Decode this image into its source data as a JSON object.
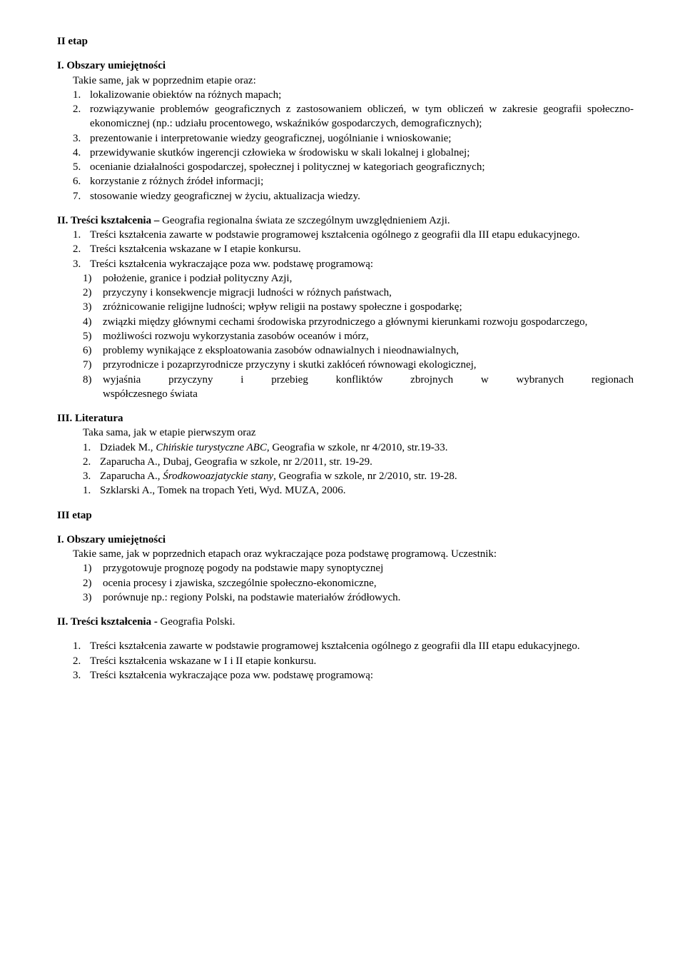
{
  "etap2": {
    "title": "II etap",
    "obszary_heading": "I. Obszary umiejętności",
    "obszary_intro": "Takie same, jak w poprzednim etapie oraz:",
    "obszary_items": [
      {
        "n": "1.",
        "t": "lokalizowanie obiektów na różnych mapach;"
      },
      {
        "n": "2.",
        "t": "rozwiązywanie problemów geograficznych z zastosowaniem obliczeń, w tym obliczeń w zakresie geografii społeczno-ekonomicznej (np.: udziału procentowego, wskaźników gospodarczych, demograficznych);",
        "just": true
      },
      {
        "n": "3.",
        "t": "prezentowanie i interpretowanie wiedzy geograficznej, uogólnianie i wnioskowanie;"
      },
      {
        "n": "4.",
        "t": "przewidywanie skutków ingerencji człowieka w środowisku w skali lokalnej i globalnej;"
      },
      {
        "n": "5.",
        "t": "ocenianie działalności gospodarczej, społecznej i politycznej w kategoriach geograficznych;"
      },
      {
        "n": "6.",
        "t": "korzystanie z różnych źródeł informacji;"
      },
      {
        "n": "7.",
        "t": "stosowanie wiedzy geograficznej w życiu, aktualizacja wiedzy."
      }
    ],
    "tresci_heading_bold": "II. Treści kształcenia – ",
    "tresci_heading_rest": "Geografia regionalna świata ze szczególnym uwzględnieniem Azji.",
    "tresci_items": [
      {
        "n": "1.",
        "t": "Treści kształcenia zawarte w podstawie programowej kształcenia ogólnego z geografii dla III etapu edukacyjnego.",
        "just": true
      },
      {
        "n": "2.",
        "t": "Treści kształcenia wskazane w I etapie konkursu."
      },
      {
        "n": "3.",
        "t": "Treści kształcenia wykraczające poza ww. podstawę programową:"
      }
    ],
    "tresci_sub": [
      {
        "n": "1)",
        "t": "położenie, granice i podział polityczny Azji,"
      },
      {
        "n": "2)",
        "t": "przyczyny i konsekwencje migracji ludności w różnych państwach,"
      },
      {
        "n": "3)",
        "t": "zróżnicowanie religijne ludności; wpływ religii na postawy społeczne i gospodarkę;"
      },
      {
        "n": "4)",
        "t": "związki między głównymi cechami środowiska przyrodniczego a głównymi kierunkami rozwoju gospodarczego,"
      },
      {
        "n": "5)",
        "t": "możliwości rozwoju wykorzystania zasobów oceanów i mórz,"
      },
      {
        "n": "6)",
        "t": "problemy wynikające z eksploatowania zasobów odnawialnych i nieodnawialnych,"
      },
      {
        "n": "7)",
        "t": "przyrodnicze i pozaprzyrodnicze przyczyny i skutki zakłóceń równowagi ekologicznej,"
      },
      {
        "n": "8)",
        "t": "wyjaśnia przyczyny i przebieg konfliktów zbrojnych w wybranych regionach współczesnego świata",
        "just8": true,
        "tail": "współczesnego świata"
      }
    ],
    "lit_heading": "III. Literatura",
    "lit_intro": "Taka sama, jak w etapie pierwszym oraz",
    "lit_items": [
      {
        "n": "1.",
        "pre": "Dziadek M., ",
        "it": "Chińskie turystyczne ABC",
        "post": ", Geografia w szkole, nr 4/2010, str.19-33."
      },
      {
        "n": "2.",
        "pre": "Zaparucha A., Dubaj, Geografia w szkole, nr 2/2011, str. 19-29.",
        "it": "",
        "post": ""
      },
      {
        "n": "3.",
        "pre": "Zaparucha A., ",
        "it": "Środkowoazjatyckie stany",
        "post": ", Geografia w szkole, nr 2/2010, str. 19-28."
      },
      {
        "n": "1.",
        "pre": "Szklarski A., Tomek na tropach Yeti, Wyd. MUZA, 2006.",
        "it": "",
        "post": ""
      }
    ]
  },
  "etap3": {
    "title": "III etap",
    "obszary_heading": "I. Obszary umiejętności",
    "obszary_intro": "Takie same, jak w poprzednich etapach oraz wykraczające poza podstawę programową. Uczestnik:",
    "obszary_sub": [
      {
        "n": "1)",
        "t": "przygotowuje prognozę  pogody na podstawie mapy synoptycznej"
      },
      {
        "n": "2)",
        "t": "ocenia procesy i zjawiska, szczególnie społeczno-ekonomiczne,"
      },
      {
        "n": "3)",
        "t": "porównuje np.: regiony Polski, na podstawie materiałów źródłowych."
      }
    ],
    "tresci_heading_bold": "II. Treści kształcenia - ",
    "tresci_heading_rest": "Geografia Polski.",
    "tresci_items": [
      {
        "n": "1.",
        "t": "Treści kształcenia zawarte w podstawie programowej kształcenia ogólnego z geografii dla III etapu edukacyjnego.",
        "just": true
      },
      {
        "n": "2.",
        "t": "Treści kształcenia wskazane w I i II etapie konkursu."
      },
      {
        "n": "3.",
        "t": "Treści kształcenia wykraczające poza ww. podstawę programową:"
      }
    ]
  }
}
